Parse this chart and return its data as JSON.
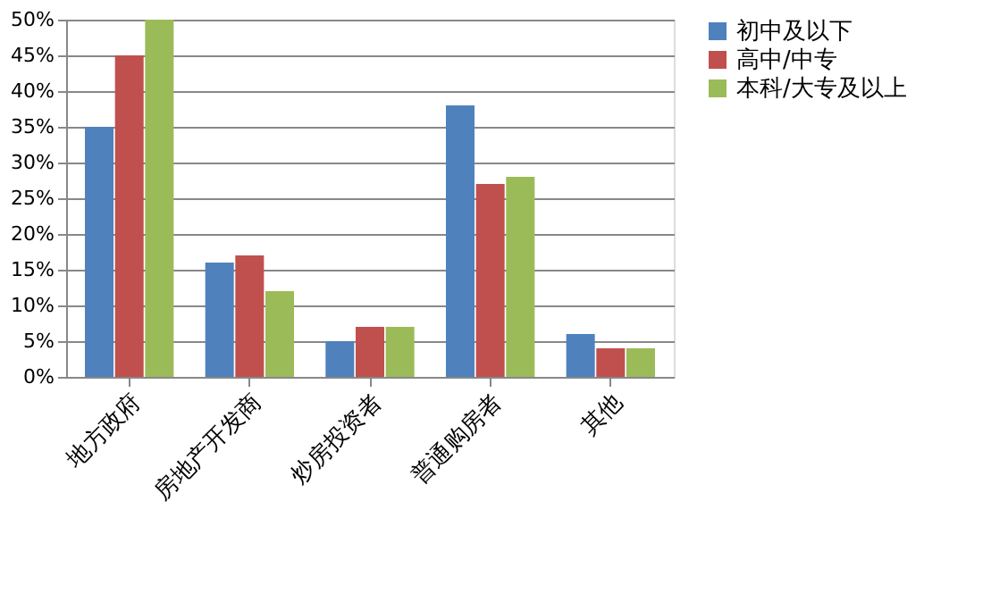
{
  "chart_data": {
    "type": "bar",
    "categories": [
      "地方政府",
      "房地产开发商",
      "炒房投资者",
      "普通购房者",
      "其他"
    ],
    "series": [
      {
        "name": "初中及以下",
        "color": "#4f81bd",
        "values": [
          35,
          16,
          5,
          38,
          6
        ]
      },
      {
        "name": "高中/中专",
        "color": "#c0504d",
        "values": [
          45,
          17,
          7,
          27,
          4
        ]
      },
      {
        "name": "本科/大专及以上",
        "color": "#9bbb59",
        "values": [
          50,
          12,
          7,
          28,
          4
        ]
      }
    ],
    "ylim": [
      0,
      50
    ],
    "yticks": [
      {
        "value": 0,
        "label": "0%"
      },
      {
        "value": 5,
        "label": "5%"
      },
      {
        "value": 10,
        "label": "10%"
      },
      {
        "value": 15,
        "label": "15%"
      },
      {
        "value": 20,
        "label": "20%"
      },
      {
        "value": 25,
        "label": "25%"
      },
      {
        "value": 30,
        "label": "30%"
      },
      {
        "value": 35,
        "label": "35%"
      },
      {
        "value": 40,
        "label": "40%"
      },
      {
        "value": 45,
        "label": "45%"
      },
      {
        "value": 50,
        "label": "50%"
      }
    ],
    "grid": "y",
    "legend": "right"
  }
}
